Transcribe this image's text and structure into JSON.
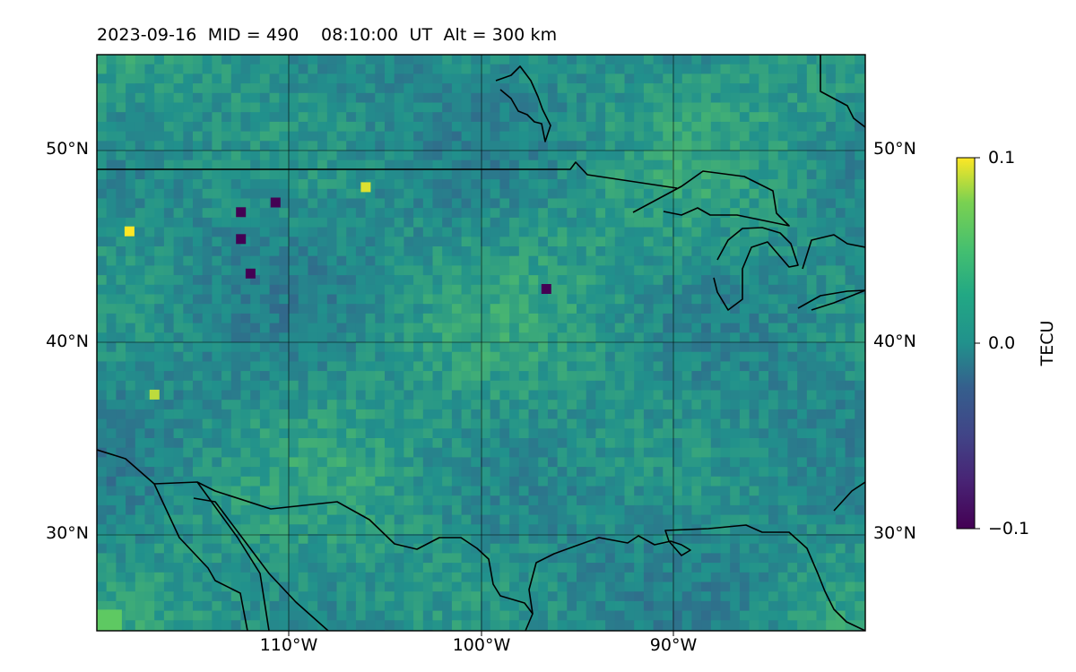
{
  "figure": {
    "title": "2023-09-16  MID = 490    08:10:00  UT  Alt = 300 km"
  },
  "map": {
    "projection": "equirectangular",
    "lon_range": [
      -120,
      -80
    ],
    "lat_range": [
      25,
      55
    ],
    "gridlines": true,
    "lat_ticks": [
      {
        "value": 50,
        "label": "50°N"
      },
      {
        "value": 40,
        "label": "40°N"
      },
      {
        "value": 30,
        "label": "30°N"
      }
    ],
    "lon_ticks": [
      {
        "value": -110,
        "label": "110°W"
      },
      {
        "value": -100,
        "label": "100°W"
      },
      {
        "value": -90,
        "label": "90°W"
      }
    ],
    "field": "differential TEC, mostly near 0.0 with scattered positive/negative outliers in the northwest",
    "hotspots": [
      {
        "lon": -118.3,
        "lat": 45.8,
        "value": 0.1
      },
      {
        "lon": -106.0,
        "lat": 48.1,
        "value": 0.09
      },
      {
        "lon": -117.0,
        "lat": 37.3,
        "value": 0.08
      },
      {
        "lon": -112.5,
        "lat": 46.8,
        "value": -0.1
      },
      {
        "lon": -112.5,
        "lat": 45.4,
        "value": -0.1
      },
      {
        "lon": -112.0,
        "lat": 43.6,
        "value": -0.1
      },
      {
        "lon": -110.7,
        "lat": 47.3,
        "value": -0.1
      },
      {
        "lon": -96.6,
        "lat": 42.8,
        "value": -0.1
      },
      {
        "lon": -119.4,
        "lat": 25.4,
        "value": 0.05
      }
    ]
  },
  "colorbar": {
    "label": "TECU",
    "colormap": "viridis",
    "min": -0.1,
    "max": 0.1,
    "ticks": [
      {
        "value": 0.1,
        "label": "0.1"
      },
      {
        "value": 0.0,
        "label": "0.0"
      },
      {
        "value": -0.1,
        "label": "−0.1"
      }
    ]
  }
}
